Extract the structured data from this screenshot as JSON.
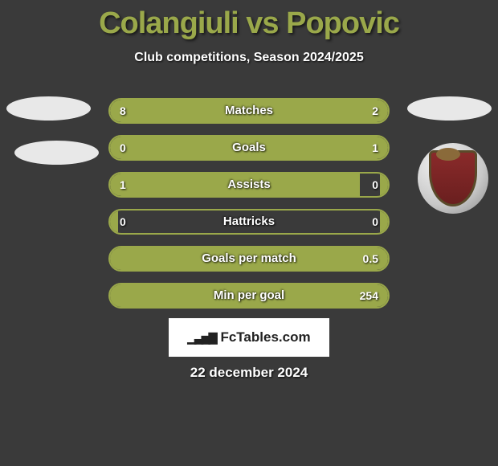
{
  "header": {
    "title": "Colangiuli vs Popovic",
    "subtitle": "Club competitions, Season 2024/2025",
    "title_color": "#9aa84a"
  },
  "accent_color": "#9aa84a",
  "background_color": "#3a3a3a",
  "text_color": "#ffffff",
  "bars": [
    {
      "label": "Matches",
      "left": "8",
      "right": "2",
      "left_pct": 80,
      "right_pct": 20
    },
    {
      "label": "Goals",
      "left": "0",
      "right": "1",
      "left_pct": 20,
      "right_pct": 80
    },
    {
      "label": "Assists",
      "left": "1",
      "right": "0",
      "left_pct": 90,
      "right_pct": 3
    },
    {
      "label": "Hattricks",
      "left": "0",
      "right": "0",
      "left_pct": 3,
      "right_pct": 3
    },
    {
      "label": "Goals per match",
      "left": "",
      "right": "0.5",
      "left_pct": 3,
      "right_pct": 97
    },
    {
      "label": "Min per goal",
      "left": "",
      "right": "254",
      "left_pct": 3,
      "right_pct": 97
    }
  ],
  "footer": {
    "brand": "FcTables.com",
    "date": "22 december 2024"
  }
}
